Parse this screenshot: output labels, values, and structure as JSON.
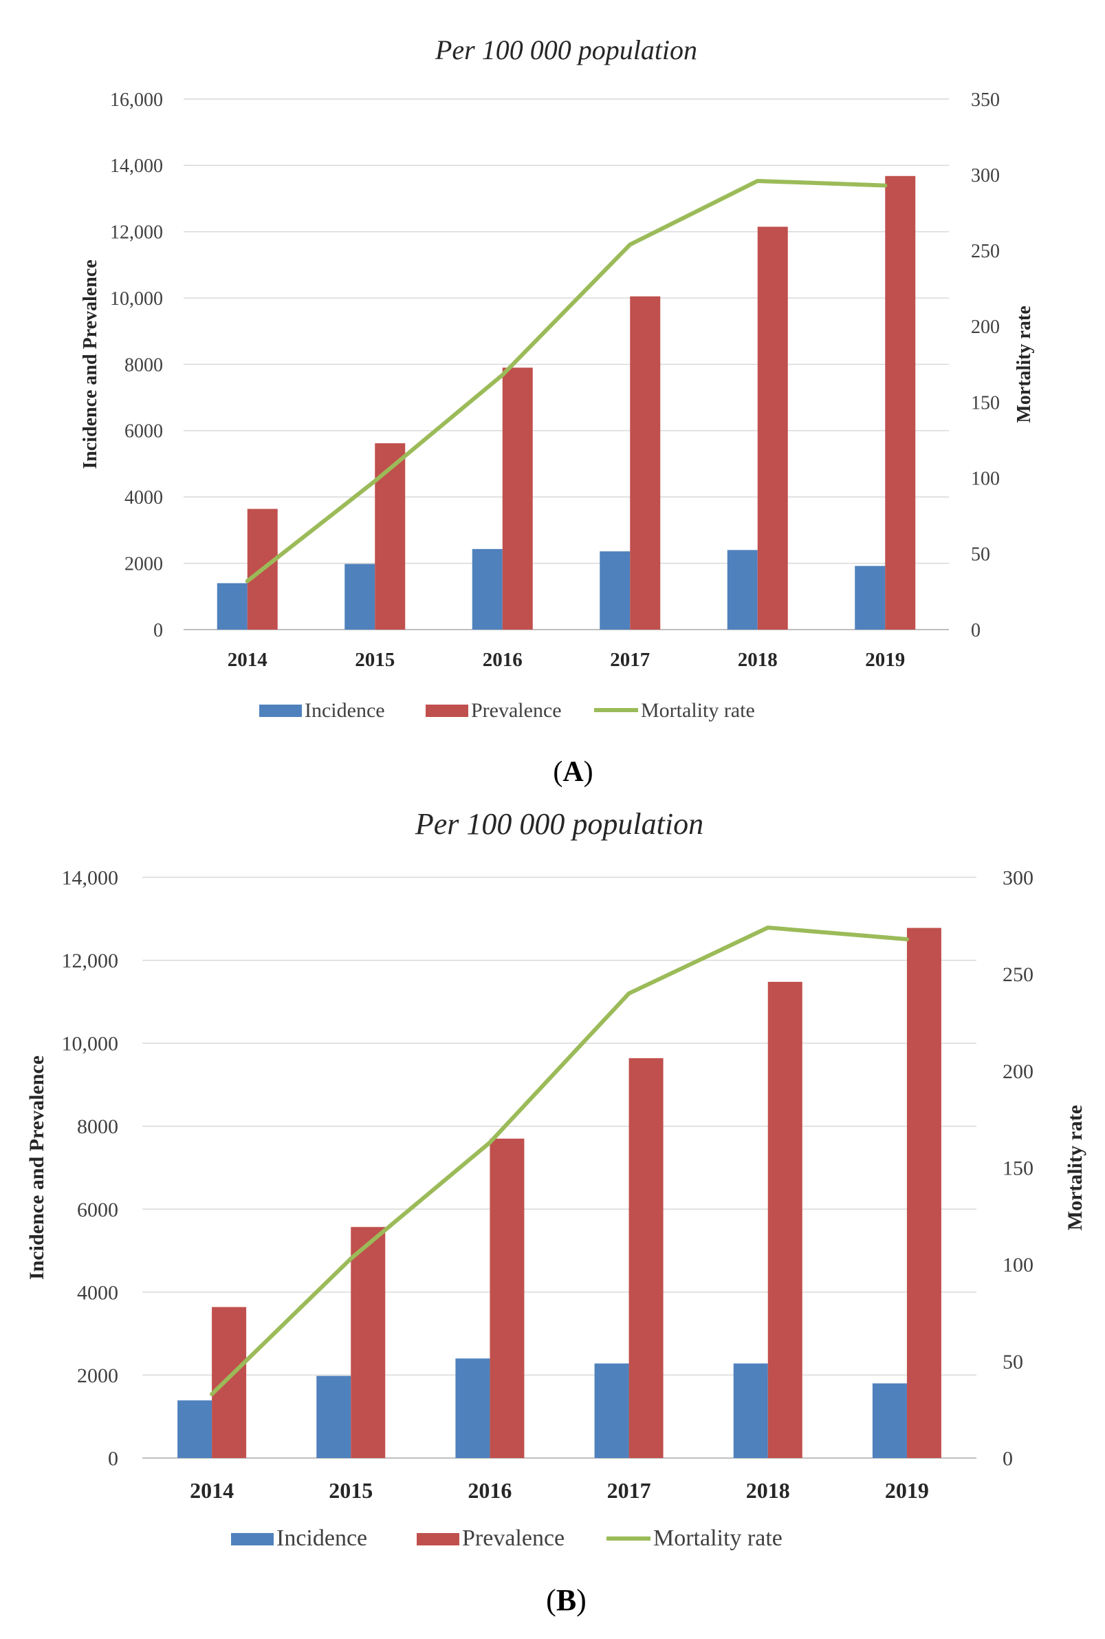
{
  "chart_data": [
    {
      "type": "bar",
      "panel_label": "A",
      "title": "Per 100 000 population",
      "categories": [
        "2014",
        "2015",
        "2016",
        "2017",
        "2018",
        "2019"
      ],
      "ylabel": "Incidence and Prevalence",
      "y2label": "Mortality rate",
      "ylim": [
        0,
        16000
      ],
      "y2lim": [
        0,
        350
      ],
      "yticks": [
        "0",
        "2000",
        "4000",
        "6000",
        "8000",
        "10,000",
        "12,000",
        "14,000",
        "16,000"
      ],
      "y2ticks": [
        "0",
        "50",
        "100",
        "150",
        "200",
        "250",
        "300",
        "350"
      ],
      "grid": true,
      "legend_position": "bottom",
      "series": [
        {
          "name": "Incidence",
          "kind": "bar",
          "axis": "left",
          "color": "#4F81BD",
          "values": [
            1400,
            1980,
            2430,
            2360,
            2400,
            1920
          ]
        },
        {
          "name": "Prevalence",
          "kind": "bar",
          "axis": "left",
          "color": "#C0504D",
          "values": [
            3640,
            5620,
            7900,
            10050,
            12150,
            13680
          ]
        },
        {
          "name": "Mortality rate",
          "kind": "line",
          "axis": "right",
          "color": "#9BBB59",
          "values": [
            32,
            98,
            168,
            254,
            296,
            293
          ]
        }
      ]
    },
    {
      "type": "bar",
      "panel_label": "B",
      "title": "Per 100 000 population",
      "categories": [
        "2014",
        "2015",
        "2016",
        "2017",
        "2018",
        "2019"
      ],
      "ylabel": "Incidence and Prevalence",
      "y2label": "Mortality rate",
      "ylim": [
        0,
        14000
      ],
      "y2lim": [
        0,
        300
      ],
      "yticks": [
        "0",
        "2000",
        "4000",
        "6000",
        "8000",
        "10,000",
        "12,000",
        "14,000"
      ],
      "y2ticks": [
        "0",
        "50",
        "100",
        "150",
        "200",
        "250",
        "300"
      ],
      "grid": true,
      "legend_position": "bottom",
      "series": [
        {
          "name": "Incidence",
          "kind": "bar",
          "axis": "left",
          "color": "#4F81BD",
          "values": [
            1390,
            1980,
            2400,
            2280,
            2280,
            1800
          ]
        },
        {
          "name": "Prevalence",
          "kind": "bar",
          "axis": "left",
          "color": "#C0504D",
          "values": [
            3640,
            5570,
            7700,
            9640,
            11480,
            12780
          ]
        },
        {
          "name": "Mortality rate",
          "kind": "line",
          "axis": "right",
          "color": "#9BBB59",
          "values": [
            33,
            103,
            163,
            240,
            274,
            268
          ]
        }
      ]
    }
  ]
}
